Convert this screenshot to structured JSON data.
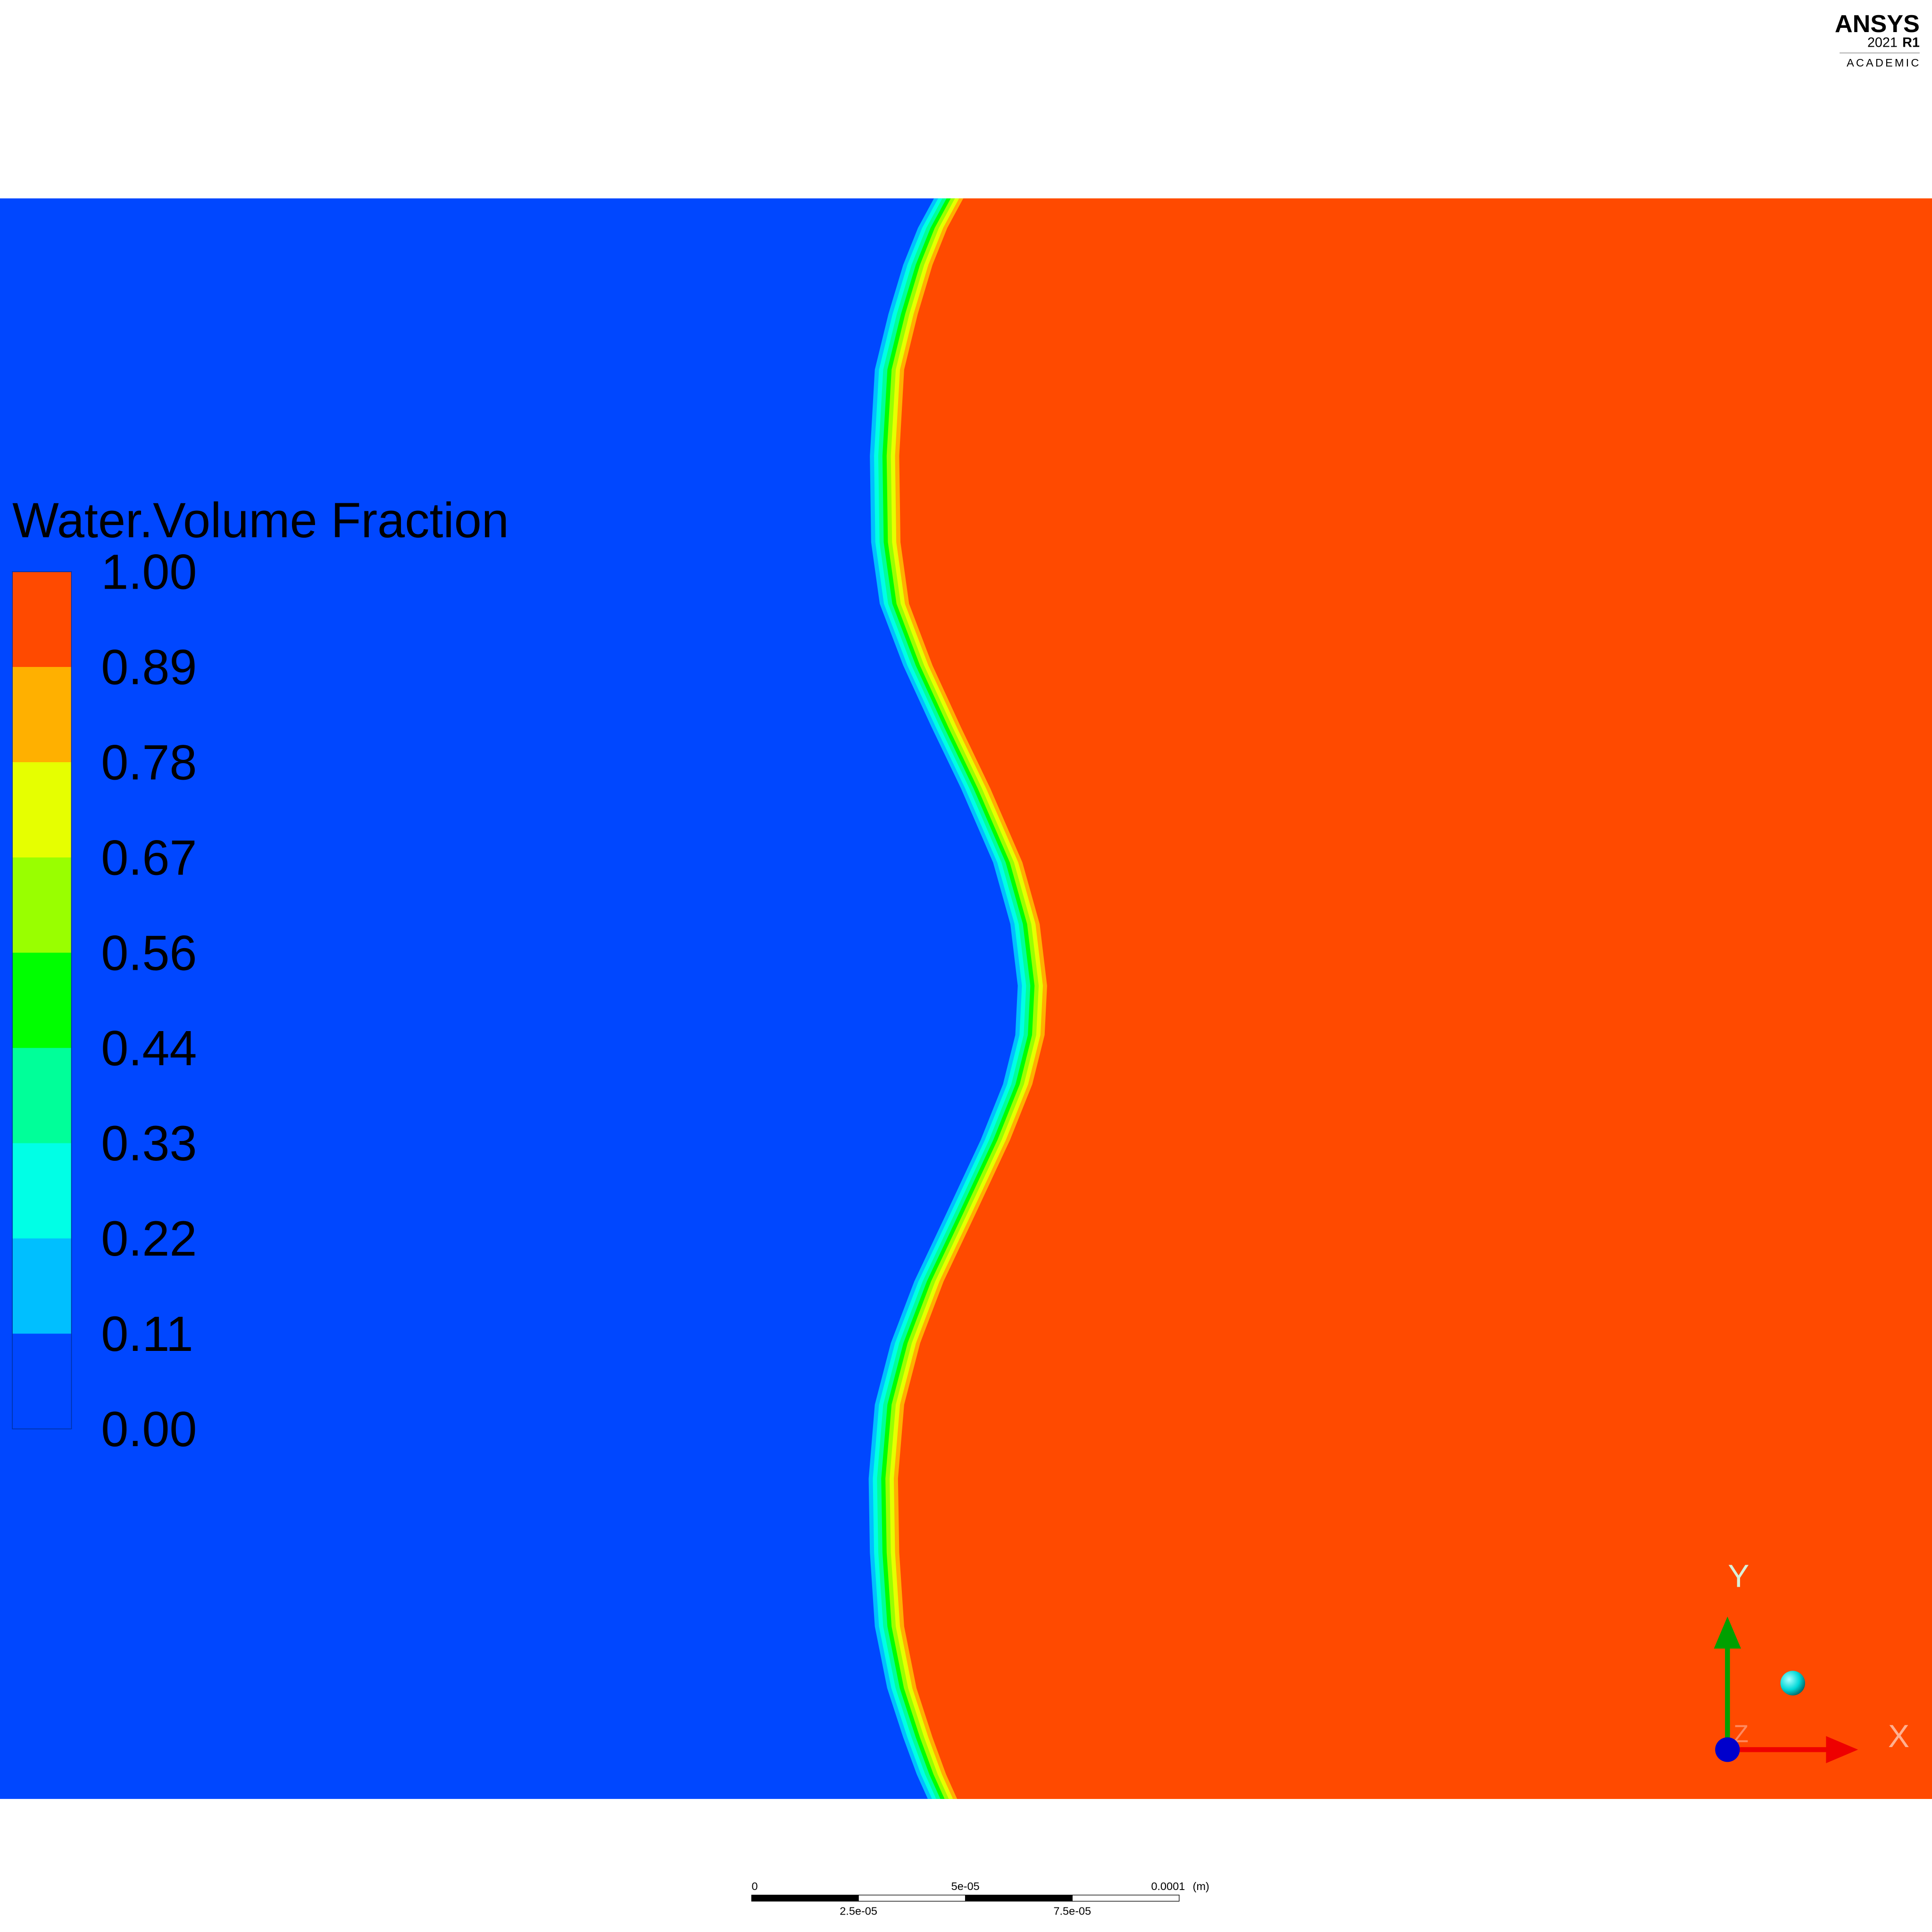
{
  "logo": {
    "brand": "ANSYS",
    "version": "2021",
    "release": "R1",
    "edition": "ACADEMIC"
  },
  "legend": {
    "title": "Water.Volume Fraction",
    "levels": [
      "1.00",
      "0.89",
      "0.78",
      "0.67",
      "0.56",
      "0.44",
      "0.33",
      "0.22",
      "0.11",
      "0.00"
    ],
    "colors": [
      "#ff4a00",
      "#ffb000",
      "#e6ff00",
      "#99ff00",
      "#00ff00",
      "#00ff99",
      "#00ffe6",
      "#00bfff",
      "#0047ff"
    ]
  },
  "scale_bar": {
    "labels": [
      "0",
      "2.5e-05",
      "5e-05",
      "7.5e-05",
      "0.0001"
    ],
    "unit": "(m)"
  },
  "triad": {
    "x": "X",
    "y": "Y",
    "z": "Z"
  }
}
